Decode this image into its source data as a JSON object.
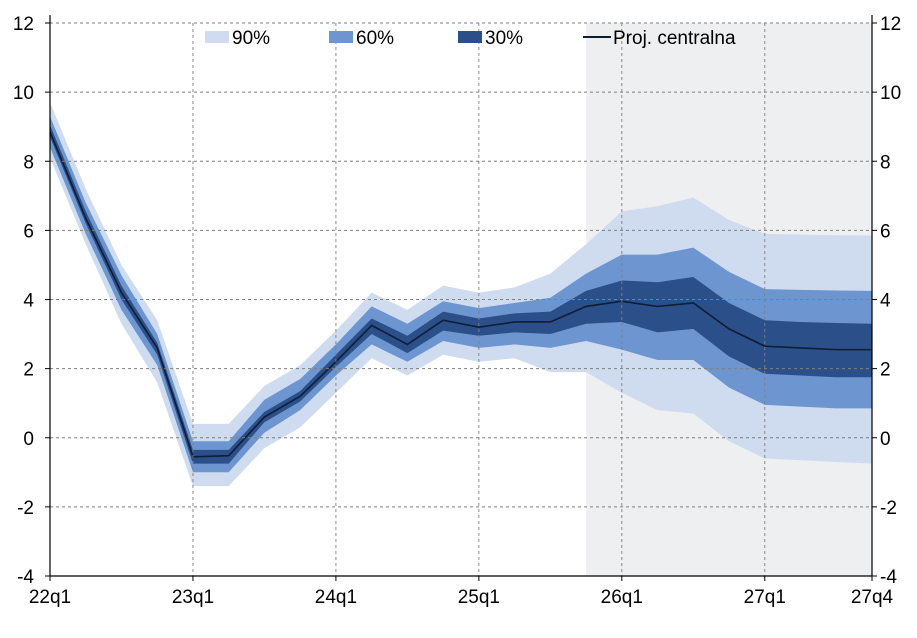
{
  "chart_data": {
    "type": "area",
    "subtype": "fan",
    "x": [
      "22q1",
      "22q2",
      "22q3",
      "22q4",
      "23q1",
      "23q2",
      "23q3",
      "23q4",
      "24q1",
      "24q2",
      "24q3",
      "24q4",
      "25q1",
      "25q2",
      "25q3",
      "25q4",
      "26q1",
      "26q2",
      "26q3",
      "26q4",
      "27q1",
      "27q2",
      "27q3",
      "27q4"
    ],
    "x_tick_labels": [
      "22q1",
      "23q1",
      "24q1",
      "25q1",
      "26q1",
      "27q1",
      "27q4"
    ],
    "ylim": [
      -4,
      12
    ],
    "y_tick_labels": [
      "12",
      "10",
      "8",
      "6",
      "4",
      "2",
      "0",
      "-2",
      "-4"
    ],
    "y_ticks": [
      12,
      10,
      8,
      6,
      4,
      2,
      0,
      -2,
      -4
    ],
    "grid": true,
    "legend_position": "top",
    "projection_shading_start": "25q4",
    "colors": {
      "band90": "#cfdcf0",
      "band60": "#6d95cf",
      "band30": "#2b5089",
      "central": "#0f1d36",
      "projection_bg": "#eeeff1",
      "grid": "#7f7f7f",
      "axis": "#000000"
    },
    "series": [
      {
        "name": "90%",
        "role": "band",
        "level": 90,
        "lower": [
          8.1,
          5.6,
          3.3,
          1.6,
          -1.4,
          -1.4,
          -0.3,
          0.3,
          1.3,
          2.3,
          1.8,
          2.4,
          2.2,
          2.3,
          1.9,
          1.9,
          1.3,
          0.8,
          0.7,
          -0.1,
          -0.6,
          -0.65,
          -0.7,
          -0.75
        ],
        "upper": [
          9.7,
          7.2,
          5.0,
          3.4,
          0.4,
          0.4,
          1.5,
          2.1,
          3.1,
          4.2,
          3.7,
          4.4,
          4.2,
          4.35,
          4.75,
          5.6,
          6.55,
          6.7,
          6.95,
          6.3,
          5.9,
          5.88,
          5.86,
          5.85
        ]
      },
      {
        "name": "60%",
        "role": "band",
        "level": 60,
        "lower": [
          8.4,
          5.9,
          3.7,
          2.1,
          -1.0,
          -1.0,
          0.15,
          0.8,
          1.8,
          2.7,
          2.2,
          2.8,
          2.6,
          2.7,
          2.6,
          2.8,
          2.55,
          2.25,
          2.25,
          1.45,
          0.95,
          0.9,
          0.85,
          0.85
        ],
        "upper": [
          9.3,
          6.8,
          4.7,
          3.0,
          -0.1,
          -0.1,
          1.1,
          1.7,
          2.7,
          3.8,
          3.3,
          3.95,
          3.75,
          3.9,
          4.05,
          4.75,
          5.3,
          5.3,
          5.5,
          4.8,
          4.3,
          4.28,
          4.26,
          4.25
        ]
      },
      {
        "name": "30%",
        "role": "band",
        "level": 30,
        "lower": [
          8.7,
          6.2,
          4.0,
          2.4,
          -0.75,
          -0.75,
          0.45,
          1.05,
          2.05,
          3.0,
          2.45,
          3.1,
          2.95,
          3.05,
          3.0,
          3.3,
          3.35,
          3.05,
          3.15,
          2.35,
          1.85,
          1.8,
          1.75,
          1.75
        ],
        "upper": [
          9.05,
          6.55,
          4.4,
          2.75,
          -0.35,
          -0.35,
          0.75,
          1.35,
          2.4,
          3.45,
          2.95,
          3.65,
          3.45,
          3.6,
          3.65,
          4.25,
          4.55,
          4.5,
          4.65,
          3.9,
          3.4,
          3.35,
          3.32,
          3.3
        ]
      },
      {
        "name": "Proj. centralna",
        "role": "line",
        "values": [
          8.85,
          6.35,
          4.2,
          2.6,
          -0.55,
          -0.52,
          0.6,
          1.2,
          2.2,
          3.25,
          2.7,
          3.4,
          3.2,
          3.35,
          3.35,
          3.8,
          3.95,
          3.8,
          3.9,
          3.15,
          2.65,
          2.6,
          2.55,
          2.55
        ]
      }
    ]
  }
}
